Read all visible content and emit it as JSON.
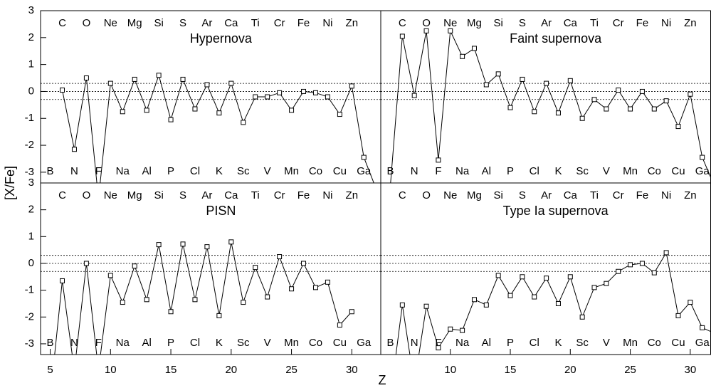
{
  "xlabel": "Z",
  "ylabel": "[X/Fe]",
  "chart_data": [
    {
      "type": "line",
      "title": "Hypernova",
      "title_color": "#e8262c",
      "xlim": [
        4.2,
        32.4
      ],
      "ylim": [
        -3.4,
        3
      ],
      "yticks": [
        -3,
        -2,
        -1,
        0,
        1,
        2,
        3
      ],
      "hlines": [
        0.3,
        0,
        -0.3
      ],
      "annotations": [
        {
          "text": "B",
          "x": 5
        },
        {
          "text": "C",
          "x": 6
        },
        {
          "text": "N",
          "x": 7
        },
        {
          "text": "O",
          "x": 8
        },
        {
          "text": "F",
          "x": 9
        },
        {
          "text": "Ne",
          "x": 10
        },
        {
          "text": "Na",
          "x": 11
        },
        {
          "text": "Mg",
          "x": 12
        },
        {
          "text": "Al",
          "x": 13
        },
        {
          "text": "Si",
          "x": 14
        },
        {
          "text": "P",
          "x": 15
        },
        {
          "text": "S",
          "x": 16
        },
        {
          "text": "Cl",
          "x": 17
        },
        {
          "text": "Ar",
          "x": 18
        },
        {
          "text": "K",
          "x": 19
        },
        {
          "text": "Ca",
          "x": 20
        },
        {
          "text": "Sc",
          "x": 21
        },
        {
          "text": "Ti",
          "x": 22
        },
        {
          "text": "V",
          "x": 23
        },
        {
          "text": "Cr",
          "x": 24
        },
        {
          "text": "Mn",
          "x": 25
        },
        {
          "text": "Fe",
          "x": 26
        },
        {
          "text": "Co",
          "x": 27
        },
        {
          "text": "Ni",
          "x": 28
        },
        {
          "text": "Cu",
          "x": 29
        },
        {
          "text": "Zn",
          "x": 30
        },
        {
          "text": "Ga",
          "x": 31
        }
      ],
      "x": [
        6,
        7,
        8,
        9,
        10,
        11,
        12,
        13,
        14,
        15,
        16,
        17,
        18,
        19,
        20,
        21,
        22,
        23,
        24,
        25,
        26,
        27,
        28,
        29,
        30,
        31,
        32
      ],
      "series": [
        {
          "color": "#000000",
          "values": [
            0.05,
            -2.15,
            0.5,
            -4.0,
            0.3,
            -0.75,
            0.45,
            -0.7,
            0.6,
            -1.05,
            0.45,
            -0.65,
            0.25,
            -0.8,
            0.3,
            -1.15,
            -0.2,
            -0.2,
            -0.05,
            -0.7,
            0.0,
            -0.05,
            -0.2,
            -0.85,
            0.2,
            -2.45,
            -3.6
          ]
        }
      ]
    },
    {
      "type": "line",
      "title": "Faint supernova",
      "title_color": "#e8262c",
      "xlim": [
        4.2,
        31.7
      ],
      "ylim": [
        -3.4,
        3
      ],
      "hlines": [
        0.3,
        0,
        -0.3
      ],
      "annotations": [
        {
          "text": "B",
          "x": 5
        },
        {
          "text": "C",
          "x": 6
        },
        {
          "text": "N",
          "x": 7
        },
        {
          "text": "O",
          "x": 8
        },
        {
          "text": "F",
          "x": 9
        },
        {
          "text": "Ne",
          "x": 10
        },
        {
          "text": "Na",
          "x": 11
        },
        {
          "text": "Mg",
          "x": 12
        },
        {
          "text": "Al",
          "x": 13
        },
        {
          "text": "Si",
          "x": 14
        },
        {
          "text": "P",
          "x": 15
        },
        {
          "text": "S",
          "x": 16
        },
        {
          "text": "Cl",
          "x": 17
        },
        {
          "text": "Ar",
          "x": 18
        },
        {
          "text": "K",
          "x": 19
        },
        {
          "text": "Ca",
          "x": 20
        },
        {
          "text": "Sc",
          "x": 21
        },
        {
          "text": "Ti",
          "x": 22
        },
        {
          "text": "V",
          "x": 23
        },
        {
          "text": "Cr",
          "x": 24
        },
        {
          "text": "Mn",
          "x": 25
        },
        {
          "text": "Fe",
          "x": 26
        },
        {
          "text": "Co",
          "x": 27
        },
        {
          "text": "Ni",
          "x": 28
        },
        {
          "text": "Cu",
          "x": 29
        },
        {
          "text": "Zn",
          "x": 30
        },
        {
          "text": "Ga",
          "x": 31
        }
      ],
      "x": [
        5,
        6,
        7,
        8,
        9,
        10,
        11,
        12,
        13,
        14,
        15,
        16,
        17,
        18,
        19,
        20,
        21,
        22,
        23,
        24,
        25,
        26,
        27,
        28,
        29,
        30,
        31,
        32
      ],
      "series": [
        {
          "color": "#000000",
          "values": [
            -3.5,
            2.05,
            -0.15,
            2.25,
            -2.55,
            2.25,
            1.3,
            1.6,
            0.25,
            0.65,
            -0.6,
            0.45,
            -0.75,
            0.3,
            -0.8,
            0.4,
            -1.0,
            -0.3,
            -0.65,
            0.05,
            -0.65,
            0.0,
            -0.65,
            -0.35,
            -1.3,
            -0.1,
            -2.45,
            -3.5
          ]
        }
      ]
    },
    {
      "type": "line",
      "title": "PISN",
      "title_color": "#e8262c",
      "xlim": [
        4.2,
        32.4
      ],
      "ylim": [
        -3.4,
        3
      ],
      "yticks": [
        -3,
        -2,
        -1,
        0,
        1,
        2,
        3
      ],
      "xticks": [
        5,
        10,
        15,
        20,
        25,
        30
      ],
      "hlines": [
        0.3,
        0,
        -0.3
      ],
      "annotations": [
        {
          "text": "B",
          "x": 5
        },
        {
          "text": "C",
          "x": 6
        },
        {
          "text": "N",
          "x": 7
        },
        {
          "text": "O",
          "x": 8
        },
        {
          "text": "F",
          "x": 9
        },
        {
          "text": "Ne",
          "x": 10
        },
        {
          "text": "Na",
          "x": 11
        },
        {
          "text": "Mg",
          "x": 12
        },
        {
          "text": "Al",
          "x": 13
        },
        {
          "text": "Si",
          "x": 14
        },
        {
          "text": "P",
          "x": 15
        },
        {
          "text": "S",
          "x": 16
        },
        {
          "text": "Cl",
          "x": 17
        },
        {
          "text": "Ar",
          "x": 18
        },
        {
          "text": "K",
          "x": 19
        },
        {
          "text": "Ca",
          "x": 20
        },
        {
          "text": "Sc",
          "x": 21
        },
        {
          "text": "Ti",
          "x": 22
        },
        {
          "text": "V",
          "x": 23
        },
        {
          "text": "Cr",
          "x": 24
        },
        {
          "text": "Mn",
          "x": 25
        },
        {
          "text": "Fe",
          "x": 26
        },
        {
          "text": "Co",
          "x": 27
        },
        {
          "text": "Ni",
          "x": 28
        },
        {
          "text": "Cu",
          "x": 29
        },
        {
          "text": "Zn",
          "x": 30
        },
        {
          "text": "Ga",
          "x": 31
        }
      ],
      "x": [
        5,
        6,
        7,
        8,
        9,
        10,
        11,
        12,
        13,
        14,
        15,
        16,
        17,
        18,
        19,
        20,
        21,
        22,
        23,
        24,
        25,
        26,
        27,
        28,
        29,
        30
      ],
      "series": [
        {
          "color": "#000000",
          "values": [
            -5.0,
            -0.65,
            -4.0,
            0.0,
            -4.0,
            -0.45,
            -1.45,
            -0.1,
            -1.35,
            0.7,
            -1.8,
            0.72,
            -1.35,
            0.62,
            -1.95,
            0.8,
            -1.45,
            -0.15,
            -1.25,
            0.25,
            -0.95,
            0.0,
            -0.9,
            -0.7,
            -2.3,
            -1.8
          ]
        }
      ]
    },
    {
      "type": "line",
      "title": "Type Ia supernova",
      "title_color": "#e8262c",
      "xlim": [
        4.2,
        31.7
      ],
      "ylim": [
        -3.4,
        3
      ],
      "xticks": [
        10,
        15,
        20,
        25,
        30
      ],
      "hlines": [
        0.3,
        0,
        -0.3
      ],
      "annotations": [
        {
          "text": "B",
          "x": 5
        },
        {
          "text": "C",
          "x": 6
        },
        {
          "text": "N",
          "x": 7
        },
        {
          "text": "O",
          "x": 8
        },
        {
          "text": "F",
          "x": 9
        },
        {
          "text": "Ne",
          "x": 10
        },
        {
          "text": "Na",
          "x": 11
        },
        {
          "text": "Mg",
          "x": 12
        },
        {
          "text": "Al",
          "x": 13
        },
        {
          "text": "Si",
          "x": 14
        },
        {
          "text": "P",
          "x": 15
        },
        {
          "text": "S",
          "x": 16
        },
        {
          "text": "Cl",
          "x": 17
        },
        {
          "text": "Ar",
          "x": 18
        },
        {
          "text": "K",
          "x": 19
        },
        {
          "text": "Ca",
          "x": 20
        },
        {
          "text": "Sc",
          "x": 21
        },
        {
          "text": "Ti",
          "x": 22
        },
        {
          "text": "V",
          "x": 23
        },
        {
          "text": "Cr",
          "x": 24
        },
        {
          "text": "Mn",
          "x": 25
        },
        {
          "text": "Fe",
          "x": 26
        },
        {
          "text": "Co",
          "x": 27
        },
        {
          "text": "Ni",
          "x": 28
        },
        {
          "text": "Cu",
          "x": 29
        },
        {
          "text": "Zn",
          "x": 30
        },
        {
          "text": "Ga",
          "x": 31
        }
      ],
      "x": [
        5,
        6,
        7,
        8,
        9,
        10,
        11,
        12,
        13,
        14,
        15,
        16,
        17,
        18,
        19,
        20,
        21,
        22,
        23,
        24,
        25,
        26,
        27,
        28,
        29,
        30,
        31,
        32
      ],
      "series": [
        {
          "color": "#000000",
          "values": [
            -5.0,
            -1.55,
            -4.5,
            -1.6,
            -3.15,
            -2.45,
            -2.5,
            -1.35,
            -1.55,
            -0.45,
            -1.2,
            -0.5,
            -1.25,
            -0.55,
            -1.5,
            -0.5,
            -2.0,
            -0.9,
            -0.75,
            -0.3,
            -0.05,
            0.0,
            -0.35,
            0.4,
            -1.95,
            -1.45,
            -2.4,
            -2.6
          ]
        }
      ]
    }
  ]
}
